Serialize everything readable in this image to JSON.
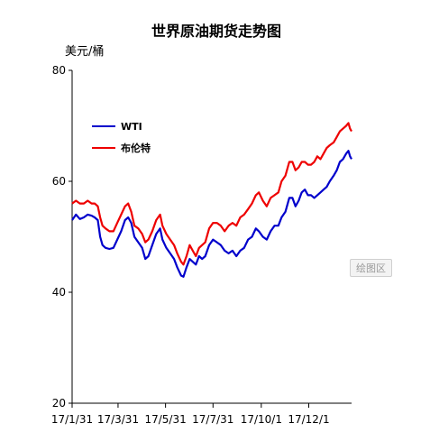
{
  "chart_data": {
    "type": "line",
    "title": "世界原油期货走势图",
    "ylabel": "美元/桶",
    "ylim": [
      20,
      80
    ],
    "yticks": [
      "80",
      "60",
      "40",
      "20"
    ],
    "xlim": [
      "2017-01-31",
      "2018-01-25"
    ],
    "xticks": [
      {
        "date": "2017-01-31",
        "label": "17/1/31"
      },
      {
        "date": "2017-03-31",
        "label": "17/3/31"
      },
      {
        "date": "2017-05-31",
        "label": "17/5/31"
      },
      {
        "date": "2017-07-31",
        "label": "17/7/31"
      },
      {
        "date": "2017-10-01",
        "label": "17/10/1"
      },
      {
        "date": "2017-12-01",
        "label": "17/12/1"
      }
    ],
    "grid": false,
    "legend_position": "top-left",
    "series": [
      {
        "name": "WTI",
        "color": "#0000cc",
        "points": [
          [
            "2017-01-31",
            53.0
          ],
          [
            "2017-02-05",
            54.0
          ],
          [
            "2017-02-10",
            53.2
          ],
          [
            "2017-02-15",
            53.5
          ],
          [
            "2017-02-20",
            54.0
          ],
          [
            "2017-02-25",
            53.8
          ],
          [
            "2017-03-01",
            53.5
          ],
          [
            "2017-03-05",
            53.0
          ],
          [
            "2017-03-08",
            50.0
          ],
          [
            "2017-03-11",
            48.5
          ],
          [
            "2017-03-15",
            48.0
          ],
          [
            "2017-03-20",
            47.8
          ],
          [
            "2017-03-25",
            48.0
          ],
          [
            "2017-03-30",
            49.5
          ],
          [
            "2017-04-04",
            51.0
          ],
          [
            "2017-04-09",
            53.0
          ],
          [
            "2017-04-13",
            53.5
          ],
          [
            "2017-04-17",
            52.5
          ],
          [
            "2017-04-21",
            50.0
          ],
          [
            "2017-04-26",
            49.0
          ],
          [
            "2017-05-01",
            48.0
          ],
          [
            "2017-05-05",
            46.0
          ],
          [
            "2017-05-09",
            46.5
          ],
          [
            "2017-05-14",
            48.5
          ],
          [
            "2017-05-19",
            50.5
          ],
          [
            "2017-05-24",
            51.5
          ],
          [
            "2017-05-27",
            49.5
          ],
          [
            "2017-06-01",
            48.0
          ],
          [
            "2017-06-06",
            47.0
          ],
          [
            "2017-06-11",
            46.0
          ],
          [
            "2017-06-15",
            44.5
          ],
          [
            "2017-06-20",
            43.0
          ],
          [
            "2017-06-23",
            42.8
          ],
          [
            "2017-06-27",
            44.5
          ],
          [
            "2017-07-01",
            46.0
          ],
          [
            "2017-07-05",
            45.5
          ],
          [
            "2017-07-09",
            45.0
          ],
          [
            "2017-07-13",
            46.5
          ],
          [
            "2017-07-17",
            46.0
          ],
          [
            "2017-07-21",
            46.5
          ],
          [
            "2017-07-26",
            48.5
          ],
          [
            "2017-07-31",
            49.5
          ],
          [
            "2017-08-05",
            49.0
          ],
          [
            "2017-08-10",
            48.5
          ],
          [
            "2017-08-15",
            47.5
          ],
          [
            "2017-08-20",
            47.0
          ],
          [
            "2017-08-25",
            47.5
          ],
          [
            "2017-08-30",
            46.5
          ],
          [
            "2017-09-04",
            47.5
          ],
          [
            "2017-09-09",
            48.0
          ],
          [
            "2017-09-14",
            49.5
          ],
          [
            "2017-09-19",
            50.0
          ],
          [
            "2017-09-24",
            51.5
          ],
          [
            "2017-09-28",
            51.0
          ],
          [
            "2017-10-03",
            50.0
          ],
          [
            "2017-10-08",
            49.5
          ],
          [
            "2017-10-13",
            51.0
          ],
          [
            "2017-10-18",
            52.0
          ],
          [
            "2017-10-23",
            52.0
          ],
          [
            "2017-10-27",
            53.5
          ],
          [
            "2017-11-01",
            54.5
          ],
          [
            "2017-11-06",
            57.0
          ],
          [
            "2017-11-10",
            57.0
          ],
          [
            "2017-11-14",
            55.5
          ],
          [
            "2017-11-18",
            56.5
          ],
          [
            "2017-11-22",
            58.0
          ],
          [
            "2017-11-26",
            58.5
          ],
          [
            "2017-11-30",
            57.5
          ],
          [
            "2017-12-04",
            57.5
          ],
          [
            "2017-12-08",
            57.0
          ],
          [
            "2017-12-12",
            57.5
          ],
          [
            "2017-12-16",
            58.0
          ],
          [
            "2017-12-20",
            58.5
          ],
          [
            "2017-12-24",
            59.0
          ],
          [
            "2017-12-28",
            60.0
          ],
          [
            "2018-01-02",
            61.0
          ],
          [
            "2018-01-06",
            62.0
          ],
          [
            "2018-01-10",
            63.5
          ],
          [
            "2018-01-14",
            64.0
          ],
          [
            "2018-01-18",
            65.0
          ],
          [
            "2018-01-21",
            65.5
          ],
          [
            "2018-01-23",
            64.5
          ],
          [
            "2018-01-25",
            64.0
          ]
        ]
      },
      {
        "name": "布伦特",
        "color": "#ee0000",
        "points": [
          [
            "2017-01-31",
            56.0
          ],
          [
            "2017-02-05",
            56.5
          ],
          [
            "2017-02-10",
            56.0
          ],
          [
            "2017-02-15",
            56.0
          ],
          [
            "2017-02-20",
            56.5
          ],
          [
            "2017-02-25",
            56.0
          ],
          [
            "2017-03-01",
            56.0
          ],
          [
            "2017-03-05",
            55.5
          ],
          [
            "2017-03-08",
            53.5
          ],
          [
            "2017-03-11",
            52.0
          ],
          [
            "2017-03-15",
            51.5
          ],
          [
            "2017-03-20",
            51.0
          ],
          [
            "2017-03-25",
            51.0
          ],
          [
            "2017-03-30",
            52.5
          ],
          [
            "2017-04-04",
            54.0
          ],
          [
            "2017-04-09",
            55.5
          ],
          [
            "2017-04-13",
            56.0
          ],
          [
            "2017-04-17",
            54.5
          ],
          [
            "2017-04-21",
            52.0
          ],
          [
            "2017-04-26",
            51.5
          ],
          [
            "2017-05-01",
            50.5
          ],
          [
            "2017-05-05",
            49.0
          ],
          [
            "2017-05-09",
            49.5
          ],
          [
            "2017-05-14",
            51.0
          ],
          [
            "2017-05-19",
            53.0
          ],
          [
            "2017-05-24",
            54.0
          ],
          [
            "2017-05-27",
            52.0
          ],
          [
            "2017-06-01",
            50.5
          ],
          [
            "2017-06-06",
            49.5
          ],
          [
            "2017-06-11",
            48.5
          ],
          [
            "2017-06-15",
            47.0
          ],
          [
            "2017-06-20",
            45.5
          ],
          [
            "2017-06-23",
            45.0
          ],
          [
            "2017-06-27",
            46.5
          ],
          [
            "2017-07-01",
            48.5
          ],
          [
            "2017-07-05",
            47.5
          ],
          [
            "2017-07-09",
            46.5
          ],
          [
            "2017-07-13",
            48.0
          ],
          [
            "2017-07-17",
            48.5
          ],
          [
            "2017-07-21",
            49.0
          ],
          [
            "2017-07-26",
            51.5
          ],
          [
            "2017-07-31",
            52.5
          ],
          [
            "2017-08-05",
            52.5
          ],
          [
            "2017-08-10",
            52.0
          ],
          [
            "2017-08-15",
            51.0
          ],
          [
            "2017-08-20",
            52.0
          ],
          [
            "2017-08-25",
            52.5
          ],
          [
            "2017-08-30",
            52.0
          ],
          [
            "2017-09-04",
            53.5
          ],
          [
            "2017-09-09",
            54.0
          ],
          [
            "2017-09-14",
            55.0
          ],
          [
            "2017-09-19",
            56.0
          ],
          [
            "2017-09-24",
            57.5
          ],
          [
            "2017-09-28",
            58.0
          ],
          [
            "2017-10-03",
            56.5
          ],
          [
            "2017-10-08",
            55.5
          ],
          [
            "2017-10-13",
            57.0
          ],
          [
            "2017-10-18",
            57.5
          ],
          [
            "2017-10-23",
            58.0
          ],
          [
            "2017-10-27",
            60.0
          ],
          [
            "2017-11-01",
            61.0
          ],
          [
            "2017-11-06",
            63.5
          ],
          [
            "2017-11-10",
            63.5
          ],
          [
            "2017-11-14",
            62.0
          ],
          [
            "2017-11-18",
            62.5
          ],
          [
            "2017-11-22",
            63.5
          ],
          [
            "2017-11-26",
            63.5
          ],
          [
            "2017-11-30",
            63.0
          ],
          [
            "2017-12-04",
            63.0
          ],
          [
            "2017-12-08",
            63.5
          ],
          [
            "2017-12-12",
            64.5
          ],
          [
            "2017-12-16",
            64.0
          ],
          [
            "2017-12-20",
            65.0
          ],
          [
            "2017-12-24",
            66.0
          ],
          [
            "2017-12-28",
            66.5
          ],
          [
            "2018-01-02",
            67.0
          ],
          [
            "2018-01-06",
            68.0
          ],
          [
            "2018-01-10",
            69.0
          ],
          [
            "2018-01-14",
            69.5
          ],
          [
            "2018-01-18",
            70.0
          ],
          [
            "2018-01-21",
            70.5
          ],
          [
            "2018-01-23",
            69.5
          ],
          [
            "2018-01-25",
            69.0
          ]
        ]
      }
    ]
  },
  "plot_button_label": "绘图区"
}
